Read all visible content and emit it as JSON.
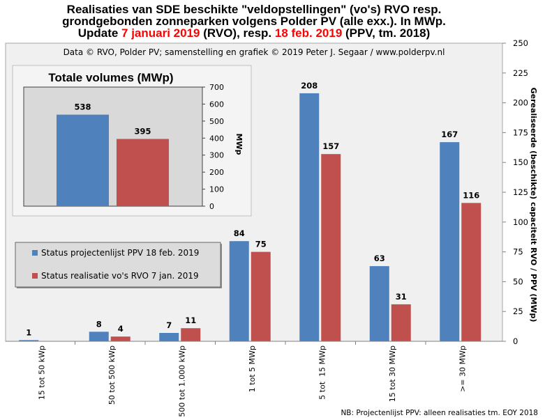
{
  "chart_data": [
    {
      "type": "bar",
      "title": {
        "line1": "Realisaties van SDE beschikte \"veldopstellingen\" (vo's) RVO resp.",
        "line2": "grondgebonden zonneparken volgens Polder PV (alle exx.). In MWp.",
        "line3": [
          "Update ",
          "7 januari 2019",
          " (RVO), resp. ",
          "18 feb. 2019",
          " (PPV, tm. 2018)"
        ],
        "line3_highlight": [
          false,
          true,
          false,
          true,
          false
        ]
      },
      "annotation": "Data © RVO, Polder PV; samenstelling en grafiek © 2019 Peter J. Segaar / www.polderpv.nl",
      "note": "NB: Projectenlijst PPV: alleen realisaties tm. EOY 2018",
      "categories": [
        "15 tot 50 kWp",
        "50 tot 500 kWp",
        "500 tot 1.000 kWp",
        "1 tot 5 MWp",
        "5 tot  15 MWp",
        "15 tot 30 MWp",
        ">= 30 MWp"
      ],
      "series": [
        {
          "name": "Status projectenlijst PPV 18 feb. 2019",
          "color": "#4f81bd",
          "values": [
            1,
            8,
            7,
            84,
            208,
            63,
            167
          ]
        },
        {
          "name": "Status realisatie vo's RVO 7 jan. 2019",
          "color": "#c0504d",
          "values": [
            null,
            4,
            11,
            75,
            157,
            31,
            116
          ]
        }
      ],
      "xlabel": "",
      "ylabel": "Gerealiseerde (beschikte) capaciteit RVO / PPV (MWp)",
      "ylim": [
        0,
        250
      ],
      "yticks": [
        0,
        25,
        50,
        75,
        100,
        125,
        150,
        175,
        200,
        225,
        250
      ],
      "y_axis_side": "right",
      "data_labels": true,
      "grid": false,
      "legend": "left"
    },
    {
      "type": "bar",
      "title": "Totale volumes (MWp)",
      "series": [
        {
          "color": "#4f81bd",
          "values": [
            538
          ]
        },
        {
          "color": "#c0504d",
          "values": [
            395
          ]
        }
      ],
      "ylabel": "MWp",
      "ylim": [
        0,
        700
      ],
      "yticks": [
        0,
        100,
        200,
        300,
        400,
        500,
        600,
        700
      ],
      "y_axis_side": "right",
      "data_labels": true,
      "grid": false,
      "placement": "top-left inset"
    }
  ],
  "colors": {
    "title_highlight": "#ff0000",
    "plot_background": "#f0f0f0",
    "inset_frame_background": "#f4f4f4",
    "inset_plot_background": "#d9d9d9",
    "legend_background": "#dcdcdc"
  }
}
